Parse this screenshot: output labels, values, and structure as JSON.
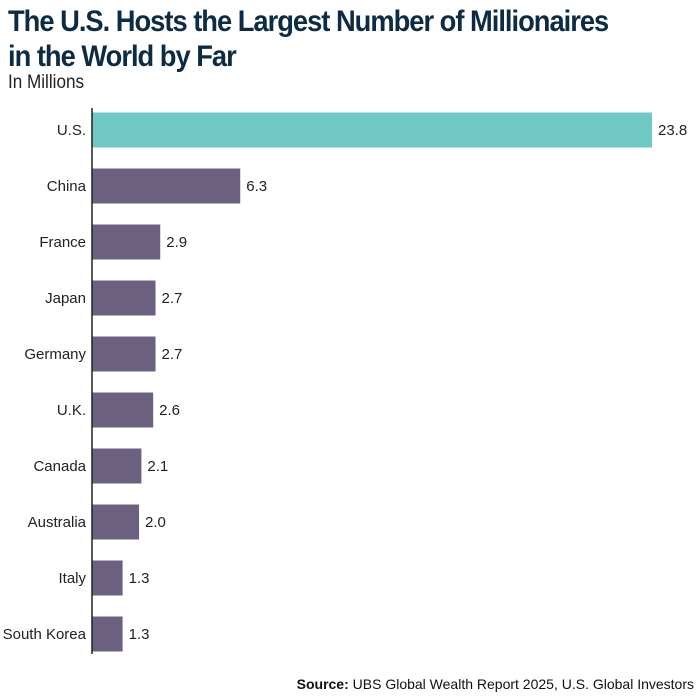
{
  "title_line1": "The U.S. Hosts the Largest Number of Millionaires",
  "title_line2": "in the World by Far",
  "subtitle": "In Millions",
  "source_label": "Source:",
  "source_text": "UBS Global Wealth Report 2025, U.S. Global Investors",
  "colors": {
    "highlight": "#6fc8c4",
    "bar": "#6c6080",
    "axis": "#222222"
  },
  "chart_data": {
    "type": "bar",
    "orientation": "horizontal",
    "title": "The U.S. Hosts the Largest Number of Millionaires in the World by Far",
    "subtitle": "In Millions",
    "categories": [
      "U.S.",
      "China",
      "France",
      "Japan",
      "Germany",
      "U.K.",
      "Canada",
      "Australia",
      "Italy",
      "South Korea"
    ],
    "values": [
      23.8,
      6.3,
      2.9,
      2.7,
      2.7,
      2.6,
      2.1,
      2.0,
      1.3,
      1.3
    ],
    "value_labels": [
      "23.8",
      "6.3",
      "2.9",
      "2.7",
      "2.7",
      "2.6",
      "2.1",
      "2.0",
      "1.3",
      "1.3"
    ],
    "highlight_category": "U.S.",
    "xlim": [
      0,
      23.8
    ],
    "grid": false,
    "xlabel": "",
    "ylabel": ""
  }
}
